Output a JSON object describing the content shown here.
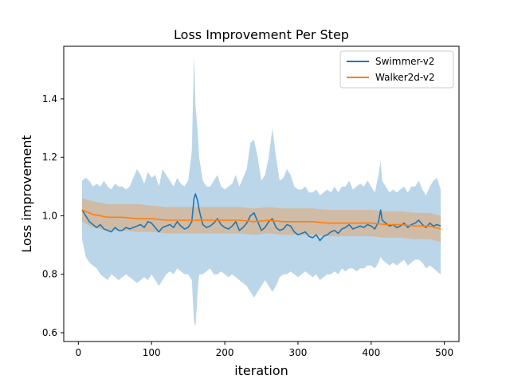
{
  "chart_data": {
    "type": "line",
    "title": "Loss Improvement Per Step",
    "xlabel": "iteration",
    "ylabel": "Loss improvement",
    "xlim": [
      -20,
      520
    ],
    "ylim": [
      0.57,
      1.58
    ],
    "xticks": [
      0,
      100,
      200,
      300,
      400,
      500
    ],
    "yticks": [
      0.6,
      0.8,
      1.0,
      1.2,
      1.4
    ],
    "ytick_labels": [
      "0.6",
      "0.8",
      "1.0",
      "1.2",
      "1.4"
    ],
    "grid": false,
    "legend_position": "top-right",
    "series": [
      {
        "name": "Swimmer-v2",
        "color": "#1f77b4",
        "band_color": "#1f77b4",
        "x": [
          5,
          10,
          15,
          20,
          25,
          30,
          35,
          40,
          45,
          50,
          55,
          60,
          65,
          70,
          75,
          80,
          85,
          90,
          95,
          100,
          105,
          110,
          115,
          120,
          125,
          130,
          135,
          140,
          145,
          150,
          155,
          158,
          160,
          163,
          165,
          170,
          175,
          180,
          185,
          190,
          195,
          200,
          205,
          210,
          215,
          220,
          225,
          230,
          235,
          240,
          245,
          250,
          255,
          260,
          265,
          270,
          275,
          280,
          285,
          290,
          295,
          300,
          305,
          310,
          315,
          320,
          325,
          330,
          335,
          340,
          345,
          350,
          355,
          360,
          365,
          370,
          375,
          380,
          385,
          390,
          395,
          400,
          405,
          410,
          413,
          415,
          420,
          425,
          430,
          435,
          440,
          445,
          450,
          455,
          460,
          465,
          470,
          475,
          480,
          485,
          490,
          495
        ],
        "y": [
          1.02,
          1.0,
          0.98,
          0.97,
          0.96,
          0.97,
          0.955,
          0.95,
          0.945,
          0.96,
          0.95,
          0.95,
          0.96,
          0.955,
          0.96,
          0.965,
          0.97,
          0.96,
          0.98,
          0.975,
          0.96,
          0.945,
          0.96,
          0.965,
          0.97,
          0.96,
          0.98,
          0.965,
          0.955,
          0.96,
          0.98,
          1.06,
          1.075,
          1.05,
          1.02,
          0.97,
          0.96,
          0.965,
          0.975,
          0.99,
          0.97,
          0.96,
          0.955,
          0.965,
          0.98,
          0.95,
          0.96,
          0.975,
          1.0,
          1.01,
          0.98,
          0.95,
          0.96,
          0.98,
          0.99,
          0.96,
          0.95,
          0.955,
          0.97,
          0.965,
          0.945,
          0.935,
          0.94,
          0.945,
          0.93,
          0.925,
          0.935,
          0.915,
          0.93,
          0.935,
          0.945,
          0.95,
          0.94,
          0.955,
          0.96,
          0.97,
          0.955,
          0.96,
          0.965,
          0.96,
          0.97,
          0.965,
          0.955,
          0.98,
          1.02,
          0.985,
          0.975,
          0.965,
          0.97,
          0.96,
          0.965,
          0.975,
          0.96,
          0.97,
          0.975,
          0.985,
          0.97,
          0.96,
          0.975,
          0.965,
          0.97,
          0.965
        ],
        "upper": [
          1.12,
          1.13,
          1.12,
          1.1,
          1.11,
          1.1,
          1.12,
          1.1,
          1.09,
          1.11,
          1.1,
          1.1,
          1.09,
          1.1,
          1.13,
          1.16,
          1.14,
          1.11,
          1.15,
          1.13,
          1.14,
          1.1,
          1.16,
          1.14,
          1.12,
          1.1,
          1.13,
          1.11,
          1.1,
          1.12,
          1.22,
          1.55,
          1.38,
          1.29,
          1.2,
          1.12,
          1.1,
          1.1,
          1.12,
          1.14,
          1.1,
          1.09,
          1.1,
          1.11,
          1.14,
          1.1,
          1.13,
          1.16,
          1.25,
          1.26,
          1.2,
          1.12,
          1.14,
          1.2,
          1.3,
          1.2,
          1.12,
          1.13,
          1.16,
          1.14,
          1.1,
          1.09,
          1.09,
          1.1,
          1.08,
          1.08,
          1.09,
          1.07,
          1.08,
          1.09,
          1.08,
          1.1,
          1.08,
          1.1,
          1.1,
          1.12,
          1.09,
          1.1,
          1.11,
          1.1,
          1.12,
          1.1,
          1.08,
          1.14,
          1.19,
          1.12,
          1.1,
          1.08,
          1.09,
          1.08,
          1.09,
          1.1,
          1.08,
          1.1,
          1.1,
          1.12,
          1.09,
          1.07,
          1.1,
          1.12,
          1.13,
          1.09
        ],
        "lower": [
          0.92,
          0.86,
          0.84,
          0.83,
          0.82,
          0.8,
          0.79,
          0.78,
          0.8,
          0.79,
          0.78,
          0.79,
          0.8,
          0.79,
          0.78,
          0.77,
          0.78,
          0.79,
          0.78,
          0.8,
          0.78,
          0.76,
          0.78,
          0.8,
          0.81,
          0.8,
          0.82,
          0.81,
          0.8,
          0.8,
          0.78,
          0.64,
          0.62,
          0.74,
          0.8,
          0.8,
          0.81,
          0.82,
          0.8,
          0.8,
          0.81,
          0.8,
          0.79,
          0.8,
          0.79,
          0.78,
          0.77,
          0.76,
          0.74,
          0.72,
          0.74,
          0.76,
          0.78,
          0.76,
          0.74,
          0.76,
          0.79,
          0.8,
          0.8,
          0.81,
          0.8,
          0.79,
          0.8,
          0.81,
          0.8,
          0.79,
          0.8,
          0.78,
          0.79,
          0.8,
          0.8,
          0.81,
          0.8,
          0.82,
          0.81,
          0.82,
          0.82,
          0.81,
          0.82,
          0.82,
          0.83,
          0.83,
          0.82,
          0.84,
          0.86,
          0.85,
          0.84,
          0.83,
          0.84,
          0.83,
          0.84,
          0.85,
          0.83,
          0.84,
          0.85,
          0.85,
          0.84,
          0.82,
          0.83,
          0.82,
          0.81,
          0.8
        ]
      },
      {
        "name": "Walker2d-v2",
        "color": "#ff7f0e",
        "band_color": "#ff7f0e",
        "x": [
          5,
          20,
          40,
          60,
          80,
          100,
          120,
          140,
          160,
          180,
          200,
          220,
          240,
          260,
          280,
          300,
          320,
          340,
          360,
          380,
          400,
          420,
          440,
          460,
          480,
          495
        ],
        "y": [
          1.02,
          1.005,
          0.995,
          0.995,
          0.99,
          0.99,
          0.985,
          0.985,
          0.985,
          0.985,
          0.985,
          0.985,
          0.98,
          0.985,
          0.98,
          0.98,
          0.98,
          0.975,
          0.975,
          0.975,
          0.975,
          0.97,
          0.97,
          0.965,
          0.965,
          0.955
        ],
        "upper": [
          1.06,
          1.05,
          1.04,
          1.04,
          1.04,
          1.035,
          1.03,
          1.03,
          1.03,
          1.03,
          1.03,
          1.03,
          1.025,
          1.03,
          1.025,
          1.025,
          1.025,
          1.02,
          1.02,
          1.02,
          1.02,
          1.015,
          1.015,
          1.01,
          1.01,
          1.0
        ],
        "lower": [
          0.98,
          0.96,
          0.95,
          0.95,
          0.945,
          0.945,
          0.94,
          0.94,
          0.94,
          0.94,
          0.94,
          0.94,
          0.935,
          0.94,
          0.935,
          0.935,
          0.935,
          0.93,
          0.93,
          0.93,
          0.93,
          0.925,
          0.925,
          0.92,
          0.92,
          0.91
        ]
      }
    ]
  }
}
